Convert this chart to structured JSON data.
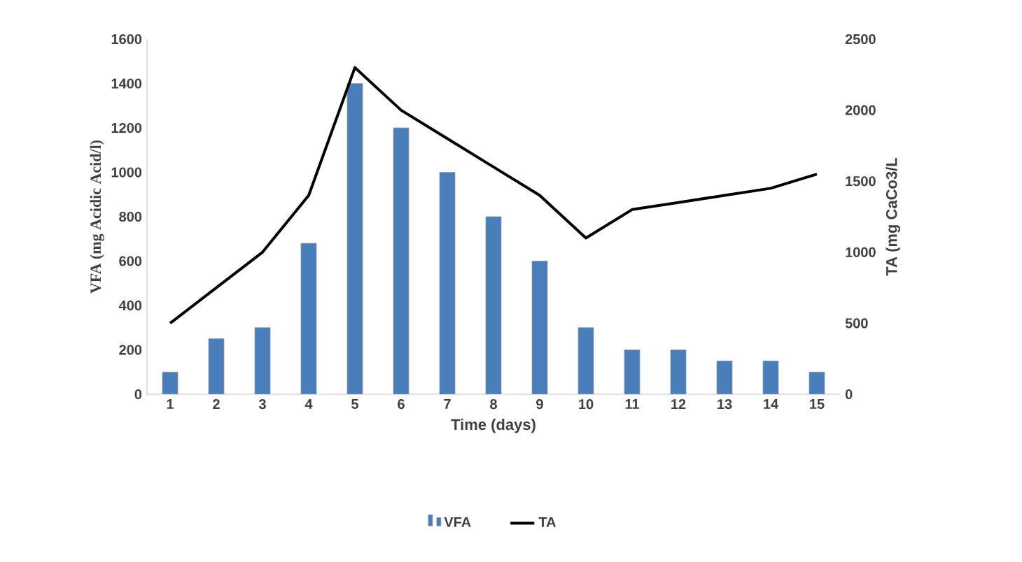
{
  "chart_data": {
    "type": "bar",
    "xlabel": "Time (days)",
    "ylabel": "VFA (mg Acidic Acid/l)",
    "y2label": "TA (mg CaCo3/L",
    "categories": [
      "1",
      "2",
      "3",
      "4",
      "5",
      "6",
      "7",
      "8",
      "9",
      "10",
      "11",
      "12",
      "13",
      "14",
      "15"
    ],
    "series": [
      {
        "name": "VFA",
        "color": "#4a7ebb",
        "values": [
          100,
          250,
          300,
          680,
          1400,
          1200,
          1000,
          800,
          600,
          300,
          200,
          200,
          150,
          150,
          100
        ]
      },
      {
        "name": "TA",
        "type": "line",
        "axis": "y2",
        "color": "#000000",
        "values": [
          500,
          750,
          1000,
          1400,
          2300,
          2000,
          1800,
          1600,
          1400,
          1100,
          1300,
          1350,
          1400,
          1450,
          1550
        ]
      }
    ],
    "ylim": [
      0,
      1600
    ],
    "yticks": [
      0,
      200,
      400,
      600,
      800,
      1000,
      1200,
      1400,
      1600
    ],
    "y2lim": [
      0,
      2500
    ],
    "y2ticks": [
      0,
      500,
      1000,
      1500,
      2000,
      2500
    ],
    "legend": "bottom",
    "marker": "none",
    "line_style": "solid"
  }
}
